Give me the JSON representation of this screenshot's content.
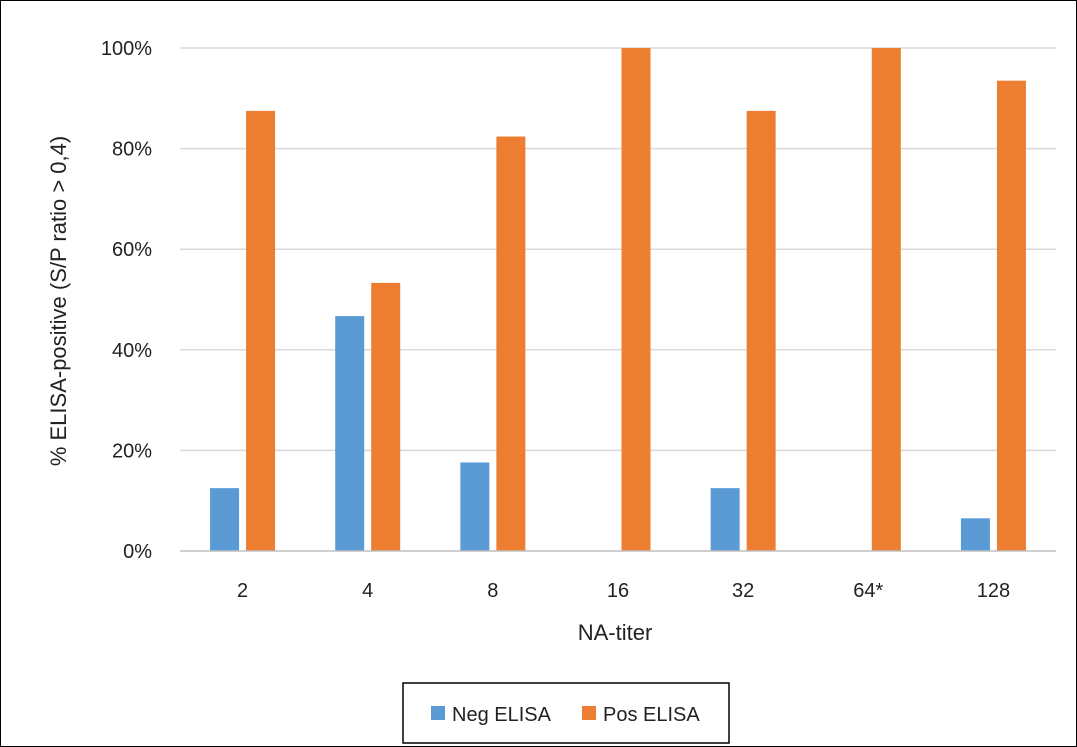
{
  "chart_data": {
    "type": "bar",
    "categories": [
      "2",
      "4",
      "8",
      "16",
      "32",
      "64*",
      "128"
    ],
    "series": [
      {
        "name": "Neg ELISA",
        "values": [
          12.5,
          46.7,
          17.6,
          0,
          12.5,
          0,
          6.5
        ]
      },
      {
        "name": "Pos ELISA",
        "values": [
          87.5,
          53.3,
          82.4,
          100,
          87.5,
          100,
          93.5
        ]
      }
    ],
    "yticks": [
      "0%",
      "20%",
      "40%",
      "60%",
      "80%",
      "100%"
    ],
    "ylim": [
      0,
      100
    ],
    "xlabel": "NA-titer",
    "ylabel": "% ELISA-positive (S/P ratio > 0,4)",
    "grid": true,
    "legend_position": "bottom",
    "colors": {
      "Neg ELISA": "#5B9BD5",
      "Pos ELISA": "#ED7D31"
    }
  }
}
